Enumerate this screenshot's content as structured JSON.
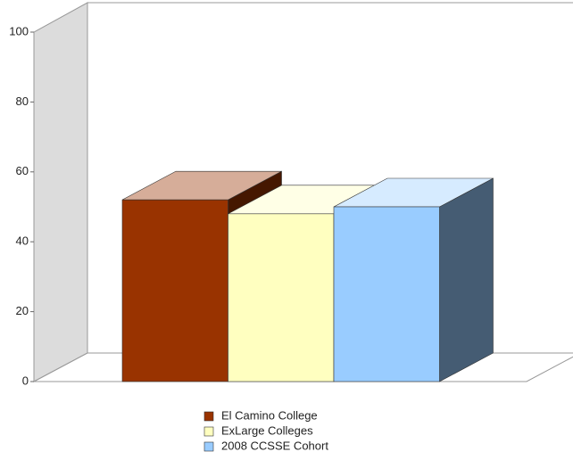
{
  "chart_data": {
    "type": "bar3d",
    "categories": [
      null
    ],
    "series": [
      {
        "name": "El Camino College",
        "color": "#993300",
        "values": [
          52
        ]
      },
      {
        "name": "ExLarge Colleges",
        "color": "#ffffc0",
        "values": [
          48
        ]
      },
      {
        "name": "2008 CCSSE Cohort",
        "color": "#99ccff",
        "values": [
          50
        ]
      }
    ],
    "ylim": [
      0,
      100
    ],
    "yticks": [
      0,
      20,
      40,
      60,
      80,
      100
    ]
  }
}
